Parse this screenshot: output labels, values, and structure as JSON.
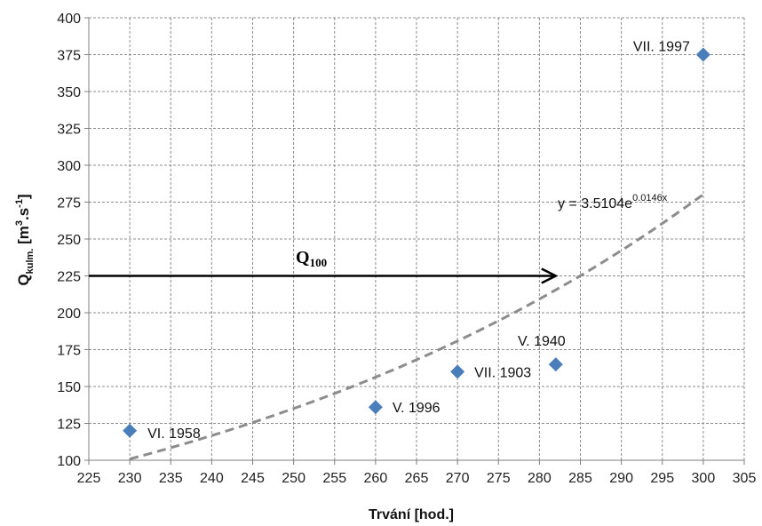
{
  "chart_data": {
    "type": "scatter",
    "title": "",
    "xlabel": "Trvání [hod.]",
    "ylabel": "Qkulm. [m3.s-1]",
    "xlim": [
      225,
      305
    ],
    "ylim": [
      100,
      400
    ],
    "x_ticks": [
      225,
      230,
      235,
      240,
      245,
      250,
      255,
      260,
      265,
      270,
      275,
      280,
      285,
      290,
      295,
      300,
      305
    ],
    "y_ticks": [
      100,
      125,
      150,
      175,
      200,
      225,
      250,
      275,
      300,
      325,
      350,
      375,
      400
    ],
    "grid": true,
    "colors": {
      "marker": "#4a7ebb",
      "trend": "#8c8c8c",
      "arrow": "#000000"
    },
    "points": [
      {
        "x": 230,
        "y": 120,
        "label": "VI. 1958"
      },
      {
        "x": 260,
        "y": 136,
        "label": "V. 1996"
      },
      {
        "x": 270,
        "y": 160,
        "label": "VII. 1903"
      },
      {
        "x": 282,
        "y": 165,
        "label": "V. 1940"
      },
      {
        "x": 300,
        "y": 375,
        "label": "VII. 1997"
      }
    ],
    "trendline": {
      "type": "exponential",
      "a": 3.5104,
      "b": 0.0146,
      "x_range": [
        230,
        300
      ],
      "equation": "y = 3.5104e",
      "exponent": "0.0146x"
    },
    "annotation": {
      "label": "Q",
      "subscript": "100",
      "y": 225,
      "x_start": 225,
      "x_end": 282
    }
  }
}
